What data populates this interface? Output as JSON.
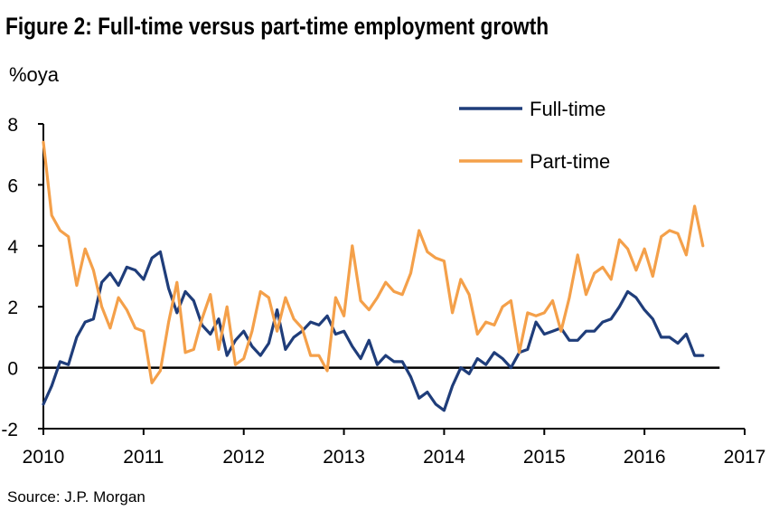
{
  "title": "Figure 2: Full-time versus part-time employment growth",
  "unit_label": "%oya",
  "source": "Source: J.P. Morgan",
  "colors": {
    "full_time": "#1f3d7a",
    "part_time": "#f4a04a",
    "axis": "#000000"
  },
  "chart_data": {
    "type": "line",
    "title": "Figure 2: Full-time versus part-time employment growth",
    "ylabel": "%oya",
    "xlabel": "",
    "xlim": [
      2010,
      2017
    ],
    "ylim": [
      -2,
      8
    ],
    "x_ticks": [
      "2010",
      "2011",
      "2012",
      "2013",
      "2014",
      "2015",
      "2016",
      "2017"
    ],
    "y_ticks": [
      "-2",
      "0",
      "2",
      "4",
      "6",
      "8"
    ],
    "legend_position": "top-right",
    "grid": false,
    "series": [
      {
        "name": "Full-time",
        "color": "#1f3d7a",
        "x": [
          2010.0,
          2010.083,
          2010.167,
          2010.25,
          2010.333,
          2010.417,
          2010.5,
          2010.583,
          2010.667,
          2010.75,
          2010.833,
          2010.917,
          2011.0,
          2011.083,
          2011.167,
          2011.25,
          2011.333,
          2011.417,
          2011.5,
          2011.583,
          2011.667,
          2011.75,
          2011.833,
          2011.917,
          2012.0,
          2012.083,
          2012.167,
          2012.25,
          2012.333,
          2012.417,
          2012.5,
          2012.583,
          2012.667,
          2012.75,
          2012.833,
          2012.917,
          2013.0,
          2013.083,
          2013.167,
          2013.25,
          2013.333,
          2013.417,
          2013.5,
          2013.583,
          2013.667,
          2013.75,
          2013.833,
          2013.917,
          2014.0,
          2014.083,
          2014.167,
          2014.25,
          2014.333,
          2014.417,
          2014.5,
          2014.583,
          2014.667,
          2014.75,
          2014.833,
          2014.917,
          2015.0,
          2015.083,
          2015.167,
          2015.25,
          2015.333,
          2015.417,
          2015.5,
          2015.583,
          2015.667,
          2015.75,
          2015.833,
          2015.917,
          2016.0,
          2016.083,
          2016.167,
          2016.25,
          2016.333,
          2016.417,
          2016.5,
          2016.583
        ],
        "values": [
          -1.2,
          -0.6,
          0.2,
          0.1,
          1.0,
          1.5,
          1.6,
          2.8,
          3.1,
          2.7,
          3.3,
          3.2,
          2.9,
          3.6,
          3.8,
          2.6,
          1.8,
          2.5,
          2.2,
          1.4,
          1.1,
          1.6,
          0.4,
          0.9,
          1.2,
          0.7,
          0.4,
          0.8,
          1.9,
          0.6,
          1.0,
          1.2,
          1.5,
          1.4,
          1.7,
          1.1,
          1.2,
          0.7,
          0.3,
          0.9,
          0.1,
          0.4,
          0.2,
          0.2,
          -0.3,
          -1.0,
          -0.8,
          -1.2,
          -1.4,
          -0.6,
          0.0,
          -0.2,
          0.3,
          0.1,
          0.5,
          0.3,
          0.0,
          0.5,
          0.6,
          1.5,
          1.1,
          1.2,
          1.3,
          0.9,
          0.9,
          1.2,
          1.2,
          1.5,
          1.6,
          2.0,
          2.5,
          2.3,
          1.9,
          1.6,
          1.0,
          1.0,
          0.8,
          1.1,
          0.4,
          0.4
        ]
      },
      {
        "name": "Part-time",
        "color": "#f4a04a",
        "x": [
          2010.0,
          2010.083,
          2010.167,
          2010.25,
          2010.333,
          2010.417,
          2010.5,
          2010.583,
          2010.667,
          2010.75,
          2010.833,
          2010.917,
          2011.0,
          2011.083,
          2011.167,
          2011.25,
          2011.333,
          2011.417,
          2011.5,
          2011.583,
          2011.667,
          2011.75,
          2011.833,
          2011.917,
          2012.0,
          2012.083,
          2012.167,
          2012.25,
          2012.333,
          2012.417,
          2012.5,
          2012.583,
          2012.667,
          2012.75,
          2012.833,
          2012.917,
          2013.0,
          2013.083,
          2013.167,
          2013.25,
          2013.333,
          2013.417,
          2013.5,
          2013.583,
          2013.667,
          2013.75,
          2013.833,
          2013.917,
          2014.0,
          2014.083,
          2014.167,
          2014.25,
          2014.333,
          2014.417,
          2014.5,
          2014.583,
          2014.667,
          2014.75,
          2014.833,
          2014.917,
          2015.0,
          2015.083,
          2015.167,
          2015.25,
          2015.333,
          2015.417,
          2015.5,
          2015.583,
          2015.667,
          2015.75,
          2015.833,
          2015.917,
          2016.0,
          2016.083,
          2016.167,
          2016.25,
          2016.333,
          2016.417,
          2016.5,
          2016.583
        ],
        "values": [
          7.4,
          5.0,
          4.5,
          4.3,
          2.7,
          3.9,
          3.2,
          2.0,
          1.3,
          2.3,
          1.9,
          1.3,
          1.2,
          -0.5,
          -0.1,
          1.5,
          2.8,
          0.5,
          0.6,
          1.6,
          2.4,
          0.6,
          2.0,
          0.1,
          0.3,
          1.2,
          2.5,
          2.3,
          1.2,
          2.3,
          1.6,
          1.3,
          0.4,
          0.4,
          -0.1,
          2.3,
          1.7,
          4.0,
          2.2,
          1.9,
          2.3,
          2.8,
          2.5,
          2.4,
          3.1,
          4.5,
          3.8,
          3.6,
          3.5,
          1.8,
          2.9,
          2.4,
          1.1,
          1.5,
          1.4,
          2.0,
          2.2,
          0.5,
          1.8,
          1.7,
          1.8,
          2.2,
          1.2,
          2.3,
          3.7,
          2.4,
          3.1,
          3.3,
          2.9,
          4.2,
          3.9,
          3.2,
          3.9,
          3.0,
          4.3,
          4.5,
          4.4,
          3.7,
          5.3,
          4.0
        ]
      }
    ]
  }
}
